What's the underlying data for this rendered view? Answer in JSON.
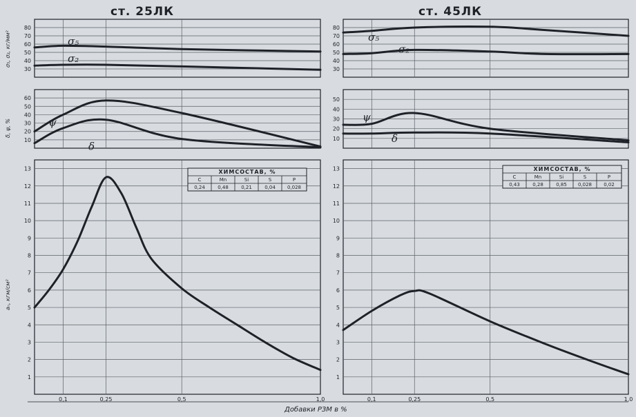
{
  "titles": [
    "ст. 25ЛК",
    "ст. 45ЛК"
  ],
  "x_axis_label": "Добавки РЗМ в %",
  "x_ticks": [
    "0,1",
    "0,25",
    "0,5",
    "1,0"
  ],
  "colors": {
    "background": "#d8dce0",
    "ink": "#1e2228",
    "grid": "#5a5f66"
  },
  "row_y_labels": [
    "σ₅, σ₂, кг/мм²",
    "δ, ψ, %",
    "aₙ, кгм/см²"
  ],
  "chemistry_table": {
    "title": "ХИМСОСТАВ, %",
    "headers": [
      "C",
      "Mn",
      "Si",
      "S",
      "P"
    ],
    "rows": [
      [
        "0,24",
        "0,48",
        "0,21",
        "0,04",
        "0,028"
      ],
      [
        "0,43",
        "0,28",
        "0,85",
        "0,028",
        "0,02"
      ]
    ]
  },
  "chart_data": [
    {
      "type": "line",
      "panel": "top",
      "steel": "ст. 25ЛК",
      "ylabel": "σ₅, σ₂, кг/мм²",
      "ylim": [
        20,
        90
      ],
      "yticks": [
        30,
        40,
        50,
        60,
        70,
        80
      ],
      "xlim": [
        0,
        1.0
      ],
      "grid": true,
      "series": [
        {
          "name": "σ₅",
          "x": [
            0,
            0.1,
            0.25,
            0.5,
            1.0
          ],
          "y": [
            56,
            58,
            57,
            54,
            51
          ]
        },
        {
          "name": "σ₂",
          "x": [
            0,
            0.1,
            0.25,
            0.5,
            1.0
          ],
          "y": [
            34,
            35,
            35,
            33,
            29
          ]
        }
      ]
    },
    {
      "type": "line",
      "panel": "middle",
      "steel": "ст. 25ЛК",
      "ylabel": "δ, ψ, %",
      "ylim": [
        0,
        70
      ],
      "yticks": [
        10,
        20,
        30,
        40,
        50,
        60
      ],
      "xlim": [
        0,
        1.0
      ],
      "grid": true,
      "series": [
        {
          "name": "ψ",
          "x": [
            0,
            0.1,
            0.25,
            0.5,
            1.0
          ],
          "y": [
            20,
            40,
            57,
            42,
            2
          ]
        },
        {
          "name": "δ",
          "x": [
            0,
            0.1,
            0.25,
            0.5,
            1.0
          ],
          "y": [
            6,
            24,
            34,
            11,
            1
          ]
        }
      ]
    },
    {
      "type": "line",
      "panel": "bottom",
      "steel": "ст. 25ЛК",
      "ylabel": "aₙ, кгм/см²",
      "ylim": [
        0,
        13.5
      ],
      "yticks": [
        1,
        2,
        3,
        4,
        5,
        6,
        7,
        8,
        9,
        10,
        11,
        12,
        13
      ],
      "xlim": [
        0,
        1.0
      ],
      "xticks": [
        0.1,
        0.25,
        0.5,
        1.0
      ],
      "grid": true,
      "series": [
        {
          "name": "aₙ",
          "x": [
            0,
            0.05,
            0.1,
            0.15,
            0.2,
            0.25,
            0.3,
            0.35,
            0.4,
            0.5,
            0.6,
            0.7,
            0.8,
            0.9,
            1.0
          ],
          "y": [
            5.0,
            6.0,
            7.2,
            8.8,
            10.8,
            12.5,
            11.6,
            9.6,
            7.8,
            6.1,
            5.0,
            4.0,
            3.0,
            2.1,
            1.4
          ]
        }
      ]
    },
    {
      "type": "line",
      "panel": "top",
      "steel": "ст. 45ЛК",
      "ylabel": "σ₅, σ₂, кг/мм²",
      "ylim": [
        20,
        90
      ],
      "yticks": [
        30,
        40,
        50,
        60,
        70,
        80
      ],
      "xlim": [
        0,
        1.0
      ],
      "grid": true,
      "series": [
        {
          "name": "σ₅",
          "x": [
            0,
            0.1,
            0.25,
            0.5,
            0.7,
            1.0
          ],
          "y": [
            74,
            76,
            80,
            81,
            77,
            70
          ]
        },
        {
          "name": "σ₂",
          "x": [
            0,
            0.1,
            0.25,
            0.5,
            0.7,
            1.0
          ],
          "y": [
            48,
            49,
            53,
            51,
            48,
            48
          ]
        }
      ]
    },
    {
      "type": "line",
      "panel": "middle",
      "steel": "ст. 45ЛК",
      "ylabel": "δ, ψ, %",
      "ylim": [
        0,
        60
      ],
      "yticks": [
        10,
        20,
        30,
        40,
        50
      ],
      "xlim": [
        0,
        1.0
      ],
      "grid": true,
      "series": [
        {
          "name": "ψ",
          "x": [
            0,
            0.1,
            0.25,
            0.5,
            1.0
          ],
          "y": [
            24,
            25,
            36,
            20,
            8
          ]
        },
        {
          "name": "δ",
          "x": [
            0,
            0.1,
            0.25,
            0.5,
            1.0
          ],
          "y": [
            15,
            15,
            16,
            15,
            6
          ]
        }
      ]
    },
    {
      "type": "line",
      "panel": "bottom",
      "steel": "ст. 45ЛК",
      "ylabel": "aₙ, кгм/см²",
      "ylim": [
        0,
        13.5
      ],
      "yticks": [
        1,
        2,
        3,
        4,
        5,
        6,
        7,
        8,
        9,
        10,
        11,
        12,
        13
      ],
      "xlim": [
        0,
        1.0
      ],
      "xticks": [
        0.1,
        0.25,
        0.5,
        1.0
      ],
      "grid": true,
      "series": [
        {
          "name": "aₙ",
          "x": [
            0,
            0.1,
            0.2,
            0.25,
            0.3,
            0.5,
            0.7,
            0.85,
            1.0
          ],
          "y": [
            3.7,
            4.8,
            5.7,
            5.95,
            5.8,
            4.2,
            2.9,
            2.0,
            1.15
          ]
        }
      ]
    }
  ]
}
